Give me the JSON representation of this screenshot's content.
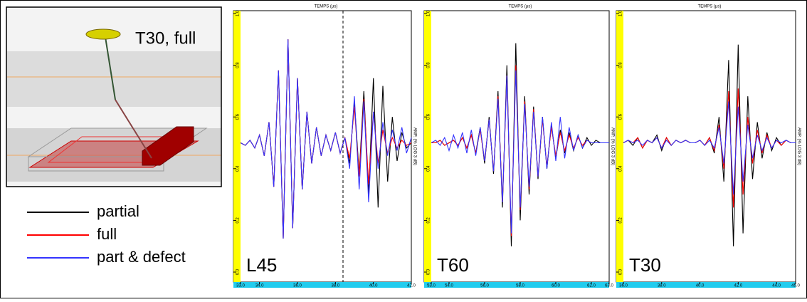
{
  "inset": {
    "label": "T30, full"
  },
  "chart_data": [
    {
      "type": "line",
      "panel_label": "L45",
      "x_title": "TEMPS (µs)",
      "y_title": "AMP. (% LOG 3 dB)",
      "xlim": [
        33,
        42
      ],
      "ylim": [
        0,
        1
      ],
      "marker_x": 38.4,
      "xticks": [
        {
          "value": 33,
          "label": "33.0"
        },
        {
          "value": 34,
          "label": "34.0"
        },
        {
          "value": 36,
          "label": "36.0"
        },
        {
          "value": 38,
          "label": "38.0"
        },
        {
          "value": 40,
          "label": "40.0"
        },
        {
          "value": 42,
          "label": "42.0"
        }
      ],
      "yticks": [
        {
          "value": 0,
          "label": "0.0"
        },
        0.2,
        0.4,
        0.6,
        0.8,
        {
          "value": 1,
          "label": "1.0"
        }
      ],
      "x": [
        33,
        33.25,
        33.5,
        33.75,
        34,
        34.25,
        34.5,
        34.75,
        35,
        35.25,
        35.5,
        35.75,
        36,
        36.25,
        36.5,
        36.75,
        37,
        37.25,
        37.5,
        37.75,
        38,
        38.25,
        38.5,
        38.75,
        39,
        39.25,
        39.5,
        39.75,
        40,
        40.25,
        40.5,
        40.75,
        41,
        41.25,
        41.5,
        41.75,
        42
      ],
      "series": [
        {
          "name": "partial",
          "color": "#000000",
          "values": [
            0.5,
            0.49,
            0.51,
            0.48,
            0.53,
            0.45,
            0.58,
            0.33,
            0.78,
            0.13,
            0.9,
            0.17,
            0.75,
            0.32,
            0.62,
            0.42,
            0.56,
            0.45,
            0.53,
            0.47,
            0.54,
            0.46,
            0.52,
            0.42,
            0.66,
            0.38,
            0.7,
            0.3,
            0.75,
            0.25,
            0.72,
            0.35,
            0.6,
            0.43,
            0.54,
            0.48,
            0.5
          ]
        },
        {
          "name": "full",
          "color": "#ff0000",
          "values": [
            0.5,
            0.49,
            0.51,
            0.48,
            0.53,
            0.45,
            0.58,
            0.33,
            0.78,
            0.13,
            0.9,
            0.17,
            0.75,
            0.32,
            0.62,
            0.42,
            0.56,
            0.45,
            0.53,
            0.47,
            0.54,
            0.46,
            0.52,
            0.44,
            0.64,
            0.37,
            0.67,
            0.34,
            0.62,
            0.42,
            0.55,
            0.46,
            0.52,
            0.48,
            0.51,
            0.49,
            0.5
          ]
        },
        {
          "name": "part & defect",
          "color": "#3333ff",
          "values": [
            0.5,
            0.49,
            0.51,
            0.48,
            0.53,
            0.45,
            0.58,
            0.33,
            0.78,
            0.13,
            0.9,
            0.17,
            0.75,
            0.32,
            0.62,
            0.42,
            0.56,
            0.45,
            0.53,
            0.47,
            0.54,
            0.46,
            0.52,
            0.4,
            0.68,
            0.32,
            0.66,
            0.27,
            0.62,
            0.4,
            0.58,
            0.45,
            0.55,
            0.47,
            0.56,
            0.46,
            0.52
          ]
        }
      ]
    },
    {
      "type": "line",
      "panel_label": "T60",
      "x_title": "TEMPS (µs)",
      "y_title": "AMP. (% LOG 3 dB)",
      "xlim": [
        53,
        63
      ],
      "ylim": [
        0,
        1
      ],
      "xticks": [
        {
          "value": 53,
          "label": "53.0"
        },
        {
          "value": 54,
          "label": "54.0"
        },
        {
          "value": 56,
          "label": "56.0"
        },
        {
          "value": 58,
          "label": "58.0"
        },
        {
          "value": 60,
          "label": "60.0"
        },
        {
          "value": 62,
          "label": "62.0"
        },
        {
          "value": 63,
          "label": "63.0"
        }
      ],
      "yticks": [
        {
          "value": 0,
          "label": "0.0"
        },
        0.2,
        0.4,
        0.6,
        0.8,
        {
          "value": 1,
          "label": "1.0"
        }
      ],
      "x": [
        53,
        53.25,
        53.5,
        53.75,
        54,
        54.25,
        54.5,
        54.75,
        55,
        55.25,
        55.5,
        55.75,
        56,
        56.25,
        56.5,
        56.75,
        57,
        57.25,
        57.5,
        57.75,
        58,
        58.25,
        58.5,
        58.75,
        59,
        59.25,
        59.5,
        59.75,
        60,
        60.25,
        60.5,
        60.75,
        61,
        61.25,
        61.5,
        61.75,
        62,
        62.25,
        62.5,
        62.75,
        63
      ],
      "series": [
        {
          "name": "partial",
          "color": "#000000",
          "values": [
            0.5,
            0.5,
            0.51,
            0.49,
            0.5,
            0.51,
            0.49,
            0.52,
            0.48,
            0.53,
            0.46,
            0.56,
            0.42,
            0.6,
            0.38,
            0.7,
            0.25,
            0.8,
            0.1,
            0.885,
            0.2,
            0.68,
            0.3,
            0.64,
            0.36,
            0.6,
            0.4,
            0.57,
            0.44,
            0.55,
            0.46,
            0.54,
            0.47,
            0.53,
            0.48,
            0.52,
            0.49,
            0.51,
            0.5,
            0.5,
            0.5
          ]
        },
        {
          "name": "full",
          "color": "#ff0000",
          "values": [
            0.5,
            0.5,
            0.51,
            0.49,
            0.5,
            0.51,
            0.49,
            0.52,
            0.48,
            0.53,
            0.46,
            0.55,
            0.43,
            0.59,
            0.39,
            0.68,
            0.27,
            0.76,
            0.14,
            0.8,
            0.24,
            0.66,
            0.32,
            0.63,
            0.37,
            0.59,
            0.41,
            0.56,
            0.45,
            0.54,
            0.47,
            0.53,
            0.48,
            0.52,
            0.49,
            0.51,
            0.5,
            0.5,
            0.5,
            0.5,
            0.5
          ]
        },
        {
          "name": "part & defect",
          "color": "#3333ff",
          "values": [
            0.5,
            0.51,
            0.49,
            0.52,
            0.47,
            0.53,
            0.48,
            0.54,
            0.46,
            0.55,
            0.45,
            0.56,
            0.43,
            0.59,
            0.39,
            0.67,
            0.27,
            0.76,
            0.15,
            0.78,
            0.25,
            0.65,
            0.33,
            0.62,
            0.37,
            0.6,
            0.4,
            0.58,
            0.43,
            0.6,
            0.44,
            0.56,
            0.47,
            0.53,
            0.48,
            0.51,
            0.5,
            0.5,
            0.5,
            0.5,
            0.5
          ]
        }
      ]
    },
    {
      "type": "line",
      "panel_label": "T30",
      "x_title": "TEMPS (µs)",
      "y_title": "AMP. (% LOG 3 dB)",
      "xlim": [
        36,
        45
      ],
      "ylim": [
        0,
        1
      ],
      "xticks": [
        {
          "value": 36,
          "label": "36.0"
        },
        {
          "value": 38,
          "label": "38.0"
        },
        {
          "value": 40,
          "label": "40.0"
        },
        {
          "value": 42,
          "label": "42.0"
        },
        {
          "value": 44,
          "label": "44.0"
        },
        {
          "value": 45,
          "label": "45.0"
        }
      ],
      "yticks": [
        {
          "value": 0,
          "label": "0.0"
        },
        0.2,
        0.4,
        0.6,
        0.8,
        {
          "value": 1,
          "label": "1.0"
        }
      ],
      "x": [
        36,
        36.25,
        36.5,
        36.75,
        37,
        37.25,
        37.5,
        37.75,
        38,
        38.25,
        38.5,
        38.75,
        39,
        39.25,
        39.5,
        39.75,
        40,
        40.25,
        40.5,
        40.75,
        41,
        41.25,
        41.5,
        41.75,
        42,
        42.25,
        42.5,
        42.75,
        43,
        43.25,
        43.5,
        43.75,
        44,
        44.25,
        44.5,
        44.75,
        45
      ],
      "series": [
        {
          "name": "partial",
          "color": "#000000",
          "values": [
            0.5,
            0.51,
            0.49,
            0.52,
            0.48,
            0.51,
            0.5,
            0.53,
            0.47,
            0.52,
            0.49,
            0.51,
            0.5,
            0.51,
            0.5,
            0.5,
            0.51,
            0.49,
            0.52,
            0.46,
            0.6,
            0.35,
            0.82,
            0.1,
            0.88,
            0.15,
            0.68,
            0.36,
            0.58,
            0.44,
            0.54,
            0.47,
            0.52,
            0.49,
            0.51,
            0.5,
            0.5
          ]
        },
        {
          "name": "full",
          "color": "#ff0000",
          "values": [
            0.5,
            0.51,
            0.5,
            0.52,
            0.48,
            0.51,
            0.5,
            0.52,
            0.48,
            0.52,
            0.49,
            0.51,
            0.5,
            0.51,
            0.5,
            0.5,
            0.51,
            0.49,
            0.52,
            0.47,
            0.57,
            0.4,
            0.7,
            0.25,
            0.71,
            0.3,
            0.6,
            0.42,
            0.55,
            0.46,
            0.53,
            0.48,
            0.51,
            0.49,
            0.51,
            0.5,
            0.5
          ]
        },
        {
          "name": "part & defect",
          "color": "#3333ff",
          "values": [
            0.5,
            0.51,
            0.5,
            0.51,
            0.49,
            0.51,
            0.5,
            0.52,
            0.48,
            0.51,
            0.49,
            0.51,
            0.5,
            0.51,
            0.5,
            0.5,
            0.51,
            0.49,
            0.51,
            0.48,
            0.56,
            0.42,
            0.66,
            0.3,
            0.64,
            0.35,
            0.57,
            0.44,
            0.53,
            0.47,
            0.52,
            0.48,
            0.51,
            0.5,
            0.51,
            0.5,
            0.5
          ]
        }
      ]
    }
  ]
}
